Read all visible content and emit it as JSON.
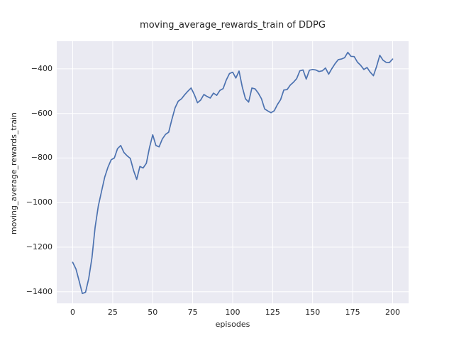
{
  "chart_data": {
    "type": "line",
    "title": "moving_average_rewards_train of DDPG",
    "xlabel": "episodes",
    "ylabel": "moving_average_rewards_train",
    "xlim": [
      -10,
      210
    ],
    "ylim": [
      -1452,
      -276
    ],
    "xticks": [
      0,
      25,
      50,
      75,
      100,
      125,
      150,
      175,
      200
    ],
    "yticks": [
      -400,
      -600,
      -800,
      -1000,
      -1200,
      -1400
    ],
    "xtick_labels": [
      "0",
      "25",
      "50",
      "75",
      "100",
      "125",
      "150",
      "175",
      "200"
    ],
    "ytick_labels": [
      "−400",
      "−600",
      "−800",
      "−1000",
      "−1200",
      "−1400"
    ],
    "grid": true,
    "legend": false,
    "plot_bg": "#eaeaf2",
    "grid_color": "#ffffff",
    "text_color": "#262626",
    "series": [
      {
        "name": "moving_average_rewards_train",
        "color": "#4c72b0",
        "x": [
          0,
          2,
          4,
          6,
          8,
          10,
          12,
          14,
          16,
          18,
          20,
          22,
          24,
          26,
          28,
          30,
          32,
          34,
          36,
          38,
          40,
          42,
          44,
          46,
          48,
          50,
          52,
          54,
          56,
          58,
          60,
          62,
          64,
          66,
          68,
          70,
          72,
          74,
          76,
          78,
          80,
          82,
          84,
          86,
          88,
          90,
          92,
          94,
          96,
          98,
          100,
          102,
          104,
          106,
          108,
          110,
          112,
          114,
          116,
          118,
          120,
          122,
          124,
          126,
          128,
          130,
          132,
          134,
          136,
          138,
          140,
          142,
          144,
          146,
          148,
          150,
          152,
          154,
          156,
          158,
          160,
          162,
          164,
          166,
          168,
          170,
          172,
          174,
          176,
          178,
          180,
          182,
          184,
          186,
          188,
          190,
          192,
          194,
          196,
          198,
          200
        ],
        "y": [
          -1268,
          -1298,
          -1352,
          -1408,
          -1402,
          -1340,
          -1248,
          -1110,
          -1015,
          -950,
          -886,
          -842,
          -808,
          -800,
          -758,
          -744,
          -775,
          -790,
          -802,
          -855,
          -896,
          -838,
          -845,
          -824,
          -752,
          -696,
          -744,
          -750,
          -715,
          -694,
          -684,
          -627,
          -575,
          -545,
          -534,
          -516,
          -500,
          -486,
          -515,
          -552,
          -540,
          -515,
          -524,
          -531,
          -509,
          -519,
          -497,
          -489,
          -450,
          -421,
          -415,
          -441,
          -410,
          -481,
          -534,
          -549,
          -486,
          -490,
          -509,
          -534,
          -580,
          -589,
          -597,
          -588,
          -560,
          -538,
          -495,
          -493,
          -473,
          -460,
          -444,
          -409,
          -405,
          -446,
          -406,
          -403,
          -405,
          -412,
          -409,
          -396,
          -424,
          -399,
          -377,
          -359,
          -356,
          -350,
          -326,
          -344,
          -345,
          -370,
          -384,
          -403,
          -394,
          -415,
          -431,
          -389,
          -339,
          -361,
          -371,
          -372,
          -356
        ]
      }
    ]
  }
}
